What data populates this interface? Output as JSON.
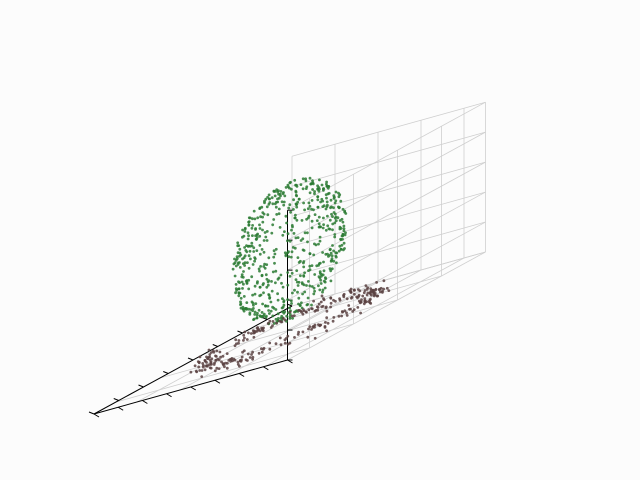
{
  "chart_data": {
    "type": "scatter",
    "projection": "3d",
    "title": "",
    "xlabel": "",
    "ylabel": "",
    "zlabel": "",
    "tick_labels_visible": false,
    "grid": true,
    "legend": "none",
    "background": "#fcfcfc",
    "pane_color": "#fcfcfc",
    "grid_color": "#cfcfcf",
    "series": [
      {
        "color": "#2a7a32",
        "shape": "sphere",
        "count": 620,
        "center": [
          0.0,
          0.0,
          0.55
        ],
        "radius": 0.42
      },
      {
        "color": "#5a4242",
        "shape": "ring",
        "count": 300,
        "center": [
          0.0,
          0.0,
          0.03
        ],
        "radius": 0.62,
        "thickness": 0.06
      }
    ],
    "xlim": [
      -1,
      1
    ],
    "ylim": [
      -1,
      1
    ],
    "zlim": [
      0,
      1
    ]
  }
}
